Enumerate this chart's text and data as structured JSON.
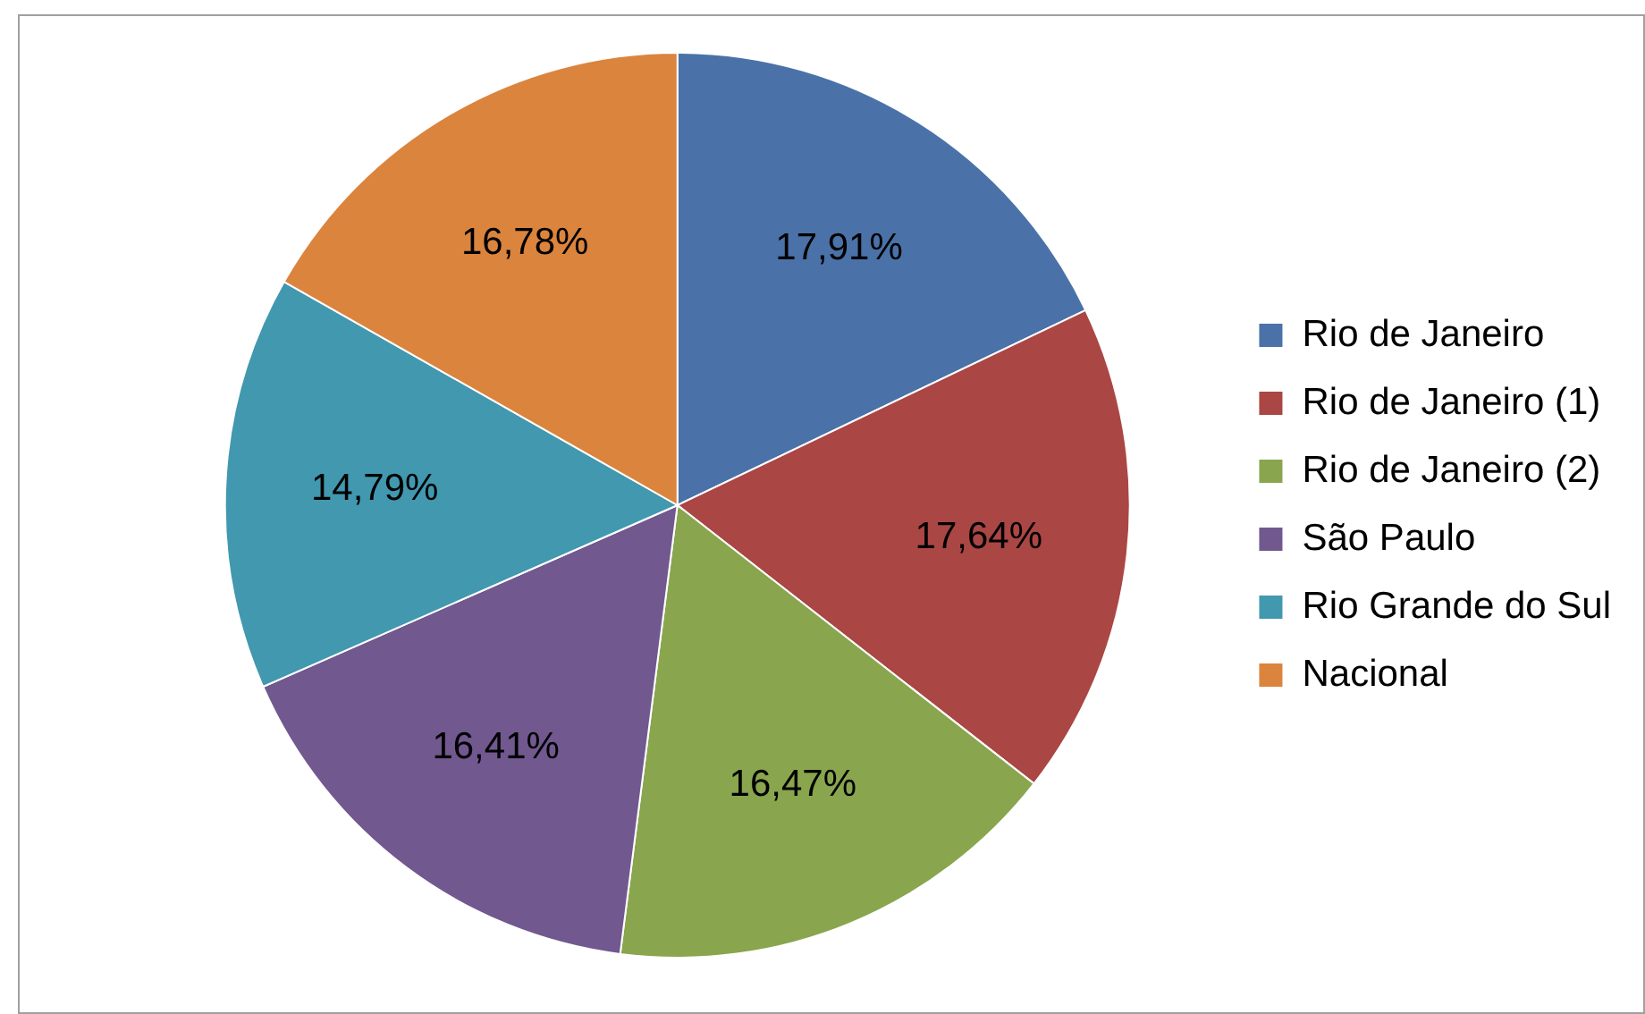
{
  "chart_data": {
    "type": "pie",
    "legend": "right",
    "categories": [
      "Rio de Janeiro",
      "Rio de Janeiro (1)",
      "Rio de Janeiro (2)",
      "São Paulo",
      "Rio Grande do Sul",
      "Nacional"
    ],
    "values": [
      17.91,
      17.64,
      16.47,
      16.41,
      14.79,
      16.78
    ],
    "colors": [
      "#4a72a8",
      "#aa4644",
      "#89a54e",
      "#71588f",
      "#4198af",
      "#db843d"
    ],
    "value_labels": [
      "17,91%",
      "17,64%",
      "16,47%",
      "16,41%",
      "14,79%",
      "16,78%"
    ]
  }
}
